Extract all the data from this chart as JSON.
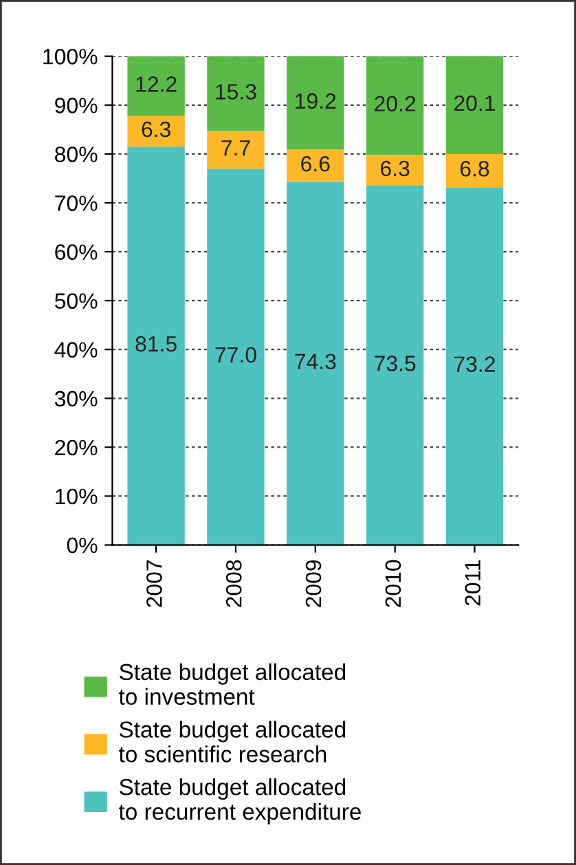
{
  "chart_data": {
    "type": "bar",
    "stacked": true,
    "categories": [
      "2007",
      "2008",
      "2009",
      "2010",
      "2011"
    ],
    "series": [
      {
        "name": "State budget allocated to recurrent expenditure",
        "color": "#4fc1be",
        "values": [
          81.5,
          77.0,
          74.3,
          73.5,
          73.2
        ],
        "value_labels": [
          "81.5",
          "77.0",
          "74.3",
          "73.5",
          "73.2"
        ]
      },
      {
        "name": "State budget allocated to scientific research",
        "color": "#fbb829",
        "values": [
          6.3,
          7.7,
          6.6,
          6.3,
          6.8
        ],
        "value_labels": [
          "6.3",
          "7.7",
          "6.6",
          "6.3",
          "6.8"
        ]
      },
      {
        "name": "State budget allocated to investment",
        "color": "#5bb947",
        "values": [
          12.2,
          15.3,
          19.2,
          20.2,
          20.1
        ],
        "value_labels": [
          "12.2",
          "15.3",
          "19.2",
          "20.2",
          "20.1"
        ]
      }
    ],
    "ylim": [
      0,
      100
    ],
    "yticks": [
      {
        "value": 0,
        "label": "0%"
      },
      {
        "value": 10,
        "label": "10%"
      },
      {
        "value": 20,
        "label": "20%"
      },
      {
        "value": 30,
        "label": "30%"
      },
      {
        "value": 40,
        "label": "40%"
      },
      {
        "value": 50,
        "label": "50%"
      },
      {
        "value": 60,
        "label": "60%"
      },
      {
        "value": 70,
        "label": "70%"
      },
      {
        "value": 80,
        "label": "80%"
      },
      {
        "value": 90,
        "label": "90%"
      },
      {
        "value": 100,
        "label": "100%"
      }
    ],
    "grid": "y",
    "legend": "bottom"
  }
}
